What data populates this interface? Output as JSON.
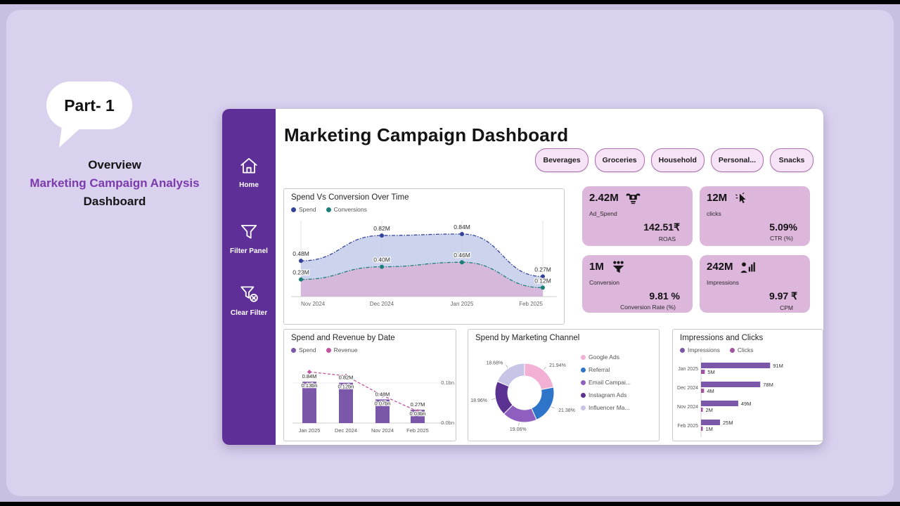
{
  "intro": {
    "bubble_label": "Part- 1",
    "line1": "Overview",
    "line2": "Marketing Campaign Analysis",
    "line3": "Dashboard"
  },
  "sidebar": {
    "items": [
      {
        "label": "Home",
        "icon": "home-icon"
      },
      {
        "label": "Filter Panel",
        "icon": "filter-icon"
      },
      {
        "label": "Clear Filter",
        "icon": "clear-filter-icon"
      }
    ]
  },
  "header": {
    "title": "Marketing Campaign Dashboard"
  },
  "filters": {
    "items": [
      {
        "label": "Beverages"
      },
      {
        "label": "Groceries"
      },
      {
        "label": "Household"
      },
      {
        "label": "Personal..."
      },
      {
        "label": "Snacks"
      }
    ]
  },
  "kpis": [
    {
      "value": "2.42M",
      "label": "Ad_Spend",
      "metric_value": "142.51₹",
      "metric_label": "ROAS",
      "icon": "money-with-wings-icon"
    },
    {
      "value": "12M",
      "label": "clicks",
      "metric_value": "5.09%",
      "metric_label": "CTR (%)",
      "icon": "click-cursor-icon"
    },
    {
      "value": "1M",
      "label": "Conversion",
      "metric_value": "9.81 %",
      "metric_label": "Conversion Rate (%)",
      "icon": "conversion-people-icon"
    },
    {
      "value": "242M",
      "label": "Impressions",
      "metric_value": "9.97 ₹",
      "metric_label": "CPM",
      "icon": "impressions-person-icon"
    }
  ],
  "colors": {
    "sidebar": "#5e2f96",
    "kpi_card": "#ddb6dc",
    "pill_bg": "#f6e3f5",
    "pill_border": "#a96fae",
    "background": "#d9d1ee"
  },
  "chart_data": [
    {
      "id": "spend_vs_conversion",
      "type": "area",
      "title": "Spend Vs Conversion Over Time",
      "x": [
        "Nov 2024",
        "Dec 2024",
        "Jan 2025",
        "Feb 2025"
      ],
      "ylim": [
        0,
        1.0
      ],
      "grid": "vertical",
      "legend_position": "top-left",
      "series": [
        {
          "name": "Spend",
          "values": [
            0.48,
            0.82,
            0.84,
            0.27
          ],
          "labels": [
            "0.48M",
            "0.82M",
            "0.84M",
            "0.27M"
          ],
          "color": "#33439b",
          "fill": "#c3cbe9"
        },
        {
          "name": "Conversions",
          "values": [
            0.23,
            0.4,
            0.46,
            0.12
          ],
          "labels": [
            "0.23M",
            "0.40M",
            "0.46M",
            "0.12M"
          ],
          "color": "#1b7f78",
          "fill": "#d6b3d8"
        }
      ]
    },
    {
      "id": "spend_revenue_by_date",
      "type": "bar",
      "title": "Spend and Revenue by Date",
      "categories": [
        "Jan 2025",
        "Dec 2024",
        "Nov 2024",
        "Feb 2025"
      ],
      "y2_ticks": [
        "0.1bn",
        "0.0bn"
      ],
      "legend_position": "top-left",
      "series": [
        {
          "name": "Spend",
          "unit": "M",
          "values": [
            0.84,
            0.82,
            0.48,
            0.27
          ],
          "labels": [
            "0.84M",
            "0.82M",
            "0.48M",
            "0.27M"
          ],
          "color": "#7a57a8"
        },
        {
          "name": "Revenue",
          "unit": "bn",
          "values": [
            0.13,
            0.12,
            0.07,
            0.03
          ],
          "labels": [
            "0.13bn",
            "0.12bn",
            "0.07bn",
            "0.03bn"
          ],
          "color": "#c4559f"
        }
      ]
    },
    {
      "id": "spend_by_marketing_channel",
      "type": "pie",
      "title": "Spend by Marketing Channel",
      "donut": true,
      "legend_position": "right",
      "labels": [
        "Google Ads",
        "Referral",
        "Email Campai...",
        "Instagram Ads",
        "Influencer Ma..."
      ],
      "values_pct": [
        21.94,
        21.38,
        19.06,
        18.96,
        18.68
      ],
      "pct_labels": [
        "21.94%",
        "21.38%",
        "19.06%",
        "18.96%",
        "18.68%"
      ],
      "colors": [
        "#f2b1d4",
        "#2e75c9",
        "#8f5fc0",
        "#5b3191",
        "#c7c4e6"
      ]
    },
    {
      "id": "impressions_and_clicks",
      "type": "bar",
      "orientation": "horizontal",
      "title": "Impressions and Clicks",
      "categories": [
        "Jan 2025",
        "Dec 2024",
        "Nov 2024",
        "Feb 2025"
      ],
      "xlim": [
        0,
        100
      ],
      "legend_position": "top-left",
      "series": [
        {
          "name": "Impressions",
          "values": [
            91,
            78,
            49,
            25
          ],
          "labels": [
            "91M",
            "78M",
            "49M",
            "25M"
          ],
          "color": "#7a57a8"
        },
        {
          "name": "Clicks",
          "values": [
            5,
            4,
            2,
            1
          ],
          "labels": [
            "5M",
            "4M",
            "2M",
            "1M"
          ],
          "color": "#a254a0"
        }
      ]
    }
  ]
}
